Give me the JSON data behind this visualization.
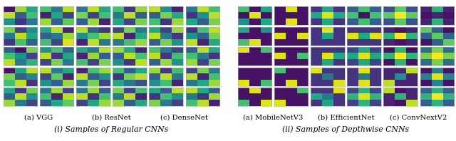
{
  "title_regular": "(i) Samples of Regular CNNs",
  "title_dw": "(ii) Samples of Depthwise CNNs",
  "label_vgg": "(a) VGG",
  "label_resnet": "(b) ResNet",
  "label_densenet": "(c) DenseNet",
  "label_mobilenet": "(a) MobileNetV3",
  "label_efficientnet": "(b) EfficientNet",
  "label_convnext": "(c) ConvNextV2",
  "nrows": 5,
  "ncols_per_group": 2,
  "colormap": "viridis",
  "background": "#ffffff",
  "text_fontsize": 7.2,
  "subtitle_fontsize": 7.8,
  "vgg_kernels": [
    [
      [
        0.05,
        0.85,
        0.6
      ],
      [
        0.9,
        0.3,
        0.7
      ],
      [
        0.5,
        0.15,
        0.4
      ]
    ],
    [
      [
        0.7,
        0.4,
        0.9
      ],
      [
        0.1,
        0.6,
        0.2
      ],
      [
        0.85,
        0.3,
        0.75
      ]
    ],
    [
      [
        0.8,
        0.2,
        0.5
      ],
      [
        0.4,
        0.9,
        0.6
      ],
      [
        0.15,
        0.7,
        0.3
      ]
    ],
    [
      [
        0.6,
        0.9,
        0.1
      ],
      [
        0.3,
        0.4,
        0.85
      ],
      [
        0.7,
        0.2,
        0.95
      ]
    ],
    [
      [
        0.3,
        0.05,
        0.8
      ],
      [
        0.7,
        0.5,
        0.2
      ],
      [
        0.9,
        0.4,
        0.65
      ]
    ],
    [
      [
        0.5,
        0.7,
        0.3
      ],
      [
        0.9,
        0.15,
        0.6
      ],
      [
        0.2,
        0.8,
        0.4
      ]
    ],
    [
      [
        0.05,
        0.6,
        0.9
      ],
      [
        0.8,
        0.3,
        0.45
      ],
      [
        0.7,
        0.9,
        0.15
      ]
    ],
    [
      [
        0.9,
        0.4,
        0.6
      ],
      [
        0.2,
        0.75,
        0.1
      ],
      [
        0.5,
        0.3,
        0.85
      ]
    ],
    [
      [
        0.6,
        0.15,
        0.8
      ],
      [
        0.3,
        0.9,
        0.5
      ],
      [
        0.85,
        0.4,
        0.2
      ]
    ],
    [
      [
        0.4,
        0.85,
        0.2
      ],
      [
        0.7,
        0.1,
        0.9
      ],
      [
        0.3,
        0.6,
        0.75
      ]
    ]
  ],
  "resnet_kernels": [
    [
      [
        0.4,
        0.9,
        0.6
      ],
      [
        0.8,
        0.2,
        0.7
      ],
      [
        0.3,
        0.85,
        0.1
      ]
    ],
    [
      [
        0.7,
        0.15,
        0.85
      ],
      [
        0.4,
        0.9,
        0.3
      ],
      [
        0.6,
        0.2,
        0.8
      ]
    ],
    [
      [
        0.9,
        0.3,
        0.15
      ],
      [
        0.5,
        0.7,
        0.85
      ],
      [
        0.1,
        0.9,
        0.4
      ]
    ],
    [
      [
        0.2,
        0.8,
        0.4
      ],
      [
        0.9,
        0.1,
        0.6
      ],
      [
        0.4,
        0.7,
        0.85
      ]
    ],
    [
      [
        0.6,
        0.4,
        0.9
      ],
      [
        0.1,
        0.85,
        0.3
      ],
      [
        0.7,
        0.2,
        0.8
      ]
    ],
    [
      [
        0.85,
        0.6,
        0.1
      ],
      [
        0.3,
        0.9,
        0.7
      ],
      [
        0.5,
        0.15,
        0.9
      ]
    ],
    [
      [
        0.1,
        0.7,
        0.85
      ],
      [
        0.9,
        0.3,
        0.5
      ],
      [
        0.4,
        0.8,
        0.2
      ]
    ],
    [
      [
        0.7,
        0.3,
        0.6
      ],
      [
        0.15,
        0.8,
        0.9
      ],
      [
        0.6,
        0.4,
        0.25
      ]
    ],
    [
      [
        0.4,
        0.85,
        0.3
      ],
      [
        0.9,
        0.15,
        0.7
      ],
      [
        0.2,
        0.6,
        0.85
      ]
    ],
    [
      [
        0.8,
        0.2,
        0.7
      ],
      [
        0.4,
        0.9,
        0.1
      ],
      [
        0.85,
        0.3,
        0.6
      ]
    ]
  ],
  "densenet_kernels": [
    [
      [
        0.9,
        0.5,
        0.1
      ],
      [
        0.3,
        0.8,
        0.6
      ],
      [
        0.7,
        0.15,
        0.85
      ]
    ],
    [
      [
        0.4,
        0.9,
        0.7
      ],
      [
        0.15,
        0.5,
        0.9
      ],
      [
        0.6,
        0.3,
        0.8
      ]
    ],
    [
      [
        0.6,
        0.2,
        0.85
      ],
      [
        0.9,
        0.4,
        0.15
      ],
      [
        0.3,
        0.8,
        0.5
      ]
    ],
    [
      [
        0.15,
        0.7,
        0.9
      ],
      [
        0.5,
        0.3,
        0.8
      ],
      [
        0.9,
        0.1,
        0.6
      ]
    ],
    [
      [
        0.7,
        0.4,
        0.2
      ],
      [
        0.9,
        0.15,
        0.7
      ],
      [
        0.3,
        0.85,
        0.5
      ]
    ],
    [
      [
        0.3,
        0.9,
        0.6
      ],
      [
        0.7,
        0.4,
        0.15
      ],
      [
        0.85,
        0.2,
        0.8
      ]
    ],
    [
      [
        0.85,
        0.15,
        0.7
      ],
      [
        0.3,
        0.9,
        0.4
      ],
      [
        0.5,
        0.7,
        0.1
      ]
    ],
    [
      [
        0.2,
        0.8,
        0.4
      ],
      [
        0.9,
        0.1,
        0.7
      ],
      [
        0.4,
        0.6,
        0.85
      ]
    ],
    [
      [
        0.6,
        0.3,
        0.9
      ],
      [
        0.15,
        0.7,
        0.5
      ],
      [
        0.8,
        0.4,
        0.2
      ]
    ],
    [
      [
        0.9,
        0.6,
        0.3
      ],
      [
        0.4,
        0.15,
        0.85
      ],
      [
        0.7,
        0.9,
        0.1
      ]
    ]
  ],
  "mobilenet_kernels": [
    [
      [
        0.7,
        0.05,
        0.6
      ],
      [
        0.05,
        0.95,
        0.05
      ],
      [
        0.5,
        0.05,
        0.6
      ]
    ],
    [
      [
        0.05,
        0.95,
        0.05
      ],
      [
        0.05,
        0.05,
        0.05
      ],
      [
        0.05,
        0.95,
        0.05
      ]
    ],
    [
      [
        0.6,
        0.05,
        0.5
      ],
      [
        0.05,
        0.05,
        0.05
      ],
      [
        0.7,
        0.95,
        0.05
      ]
    ],
    [
      [
        0.05,
        0.05,
        0.05
      ],
      [
        0.95,
        0.05,
        0.95
      ],
      [
        0.05,
        0.05,
        0.05
      ]
    ],
    [
      [
        0.95,
        0.05,
        0.7
      ],
      [
        0.05,
        0.05,
        0.05
      ],
      [
        0.05,
        0.05,
        0.05
      ]
    ],
    [
      [
        0.05,
        0.05,
        0.05
      ],
      [
        0.95,
        0.05,
        0.7
      ],
      [
        0.05,
        0.05,
        0.05
      ]
    ],
    [
      [
        0.05,
        0.05,
        0.05
      ],
      [
        0.05,
        0.05,
        0.05
      ],
      [
        0.95,
        0.05,
        0.7
      ]
    ],
    [
      [
        0.7,
        0.05,
        0.05
      ],
      [
        0.05,
        0.05,
        0.05
      ],
      [
        0.05,
        0.95,
        0.05
      ]
    ],
    [
      [
        0.05,
        0.95,
        0.05
      ],
      [
        0.05,
        0.05,
        0.05
      ],
      [
        0.7,
        0.05,
        0.95
      ]
    ],
    [
      [
        0.05,
        0.05,
        0.7
      ],
      [
        0.05,
        0.05,
        0.05
      ],
      [
        0.95,
        0.05,
        0.05
      ]
    ]
  ],
  "efficientnet_kernels": [
    [
      [
        0.15,
        0.6,
        0.15
      ],
      [
        0.6,
        0.95,
        0.6
      ],
      [
        0.15,
        0.6,
        0.15
      ]
    ],
    [
      [
        0.3,
        0.7,
        0.3
      ],
      [
        0.7,
        0.05,
        0.7
      ],
      [
        0.3,
        0.7,
        0.3
      ]
    ],
    [
      [
        0.15,
        0.95,
        0.15
      ],
      [
        0.15,
        0.6,
        0.15
      ],
      [
        0.15,
        0.15,
        0.15
      ]
    ],
    [
      [
        0.15,
        0.15,
        0.15
      ],
      [
        0.95,
        0.6,
        0.95
      ],
      [
        0.15,
        0.15,
        0.15
      ]
    ],
    [
      [
        0.15,
        0.15,
        0.15
      ],
      [
        0.15,
        0.95,
        0.6
      ],
      [
        0.15,
        0.6,
        0.15
      ]
    ],
    [
      [
        0.2,
        0.6,
        0.2
      ],
      [
        0.6,
        0.95,
        0.6
      ],
      [
        0.2,
        0.6,
        0.2
      ]
    ],
    [
      [
        0.95,
        0.15,
        0.15
      ],
      [
        0.15,
        0.4,
        0.15
      ],
      [
        0.15,
        0.15,
        0.95
      ]
    ],
    [
      [
        0.15,
        0.95,
        0.15
      ],
      [
        0.15,
        0.4,
        0.15
      ],
      [
        0.15,
        0.95,
        0.15
      ]
    ],
    [
      [
        0.15,
        0.15,
        0.95
      ],
      [
        0.6,
        0.4,
        0.15
      ],
      [
        0.15,
        0.6,
        0.15
      ]
    ],
    [
      [
        0.2,
        0.65,
        0.2
      ],
      [
        0.65,
        0.95,
        0.65
      ],
      [
        0.2,
        0.65,
        0.2
      ]
    ]
  ],
  "convnext_kernels": [
    [
      [
        0.25,
        0.75,
        0.25
      ],
      [
        0.75,
        1.0,
        0.75
      ],
      [
        0.25,
        0.75,
        0.25
      ]
    ],
    [
      [
        0.1,
        0.65,
        0.1
      ],
      [
        0.05,
        0.1,
        0.05
      ],
      [
        0.1,
        0.65,
        0.1
      ]
    ],
    [
      [
        0.1,
        0.05,
        0.1
      ],
      [
        0.65,
        1.0,
        0.65
      ],
      [
        0.1,
        0.05,
        0.1
      ]
    ],
    [
      [
        0.75,
        0.3,
        0.05
      ],
      [
        0.3,
        0.75,
        0.3
      ],
      [
        0.05,
        0.3,
        0.75
      ]
    ],
    [
      [
        0.05,
        0.65,
        0.05
      ],
      [
        0.65,
        1.0,
        0.65
      ],
      [
        0.05,
        0.65,
        0.05
      ]
    ],
    [
      [
        0.35,
        0.8,
        0.35
      ],
      [
        0.8,
        1.0,
        0.8
      ],
      [
        0.35,
        0.8,
        0.35
      ]
    ],
    [
      [
        0.1,
        0.1,
        0.9
      ],
      [
        0.1,
        0.5,
        0.1
      ],
      [
        0.9,
        0.1,
        0.1
      ]
    ],
    [
      [
        0.05,
        0.45,
        0.05
      ],
      [
        0.45,
        0.95,
        0.45
      ],
      [
        0.05,
        0.45,
        0.05
      ]
    ],
    [
      [
        0.9,
        0.05,
        0.1
      ],
      [
        0.1,
        0.65,
        0.1
      ],
      [
        0.1,
        0.05,
        0.9
      ]
    ],
    [
      [
        0.3,
        0.65,
        0.3
      ],
      [
        0.65,
        1.0,
        0.65
      ],
      [
        0.3,
        0.65,
        0.3
      ]
    ]
  ]
}
